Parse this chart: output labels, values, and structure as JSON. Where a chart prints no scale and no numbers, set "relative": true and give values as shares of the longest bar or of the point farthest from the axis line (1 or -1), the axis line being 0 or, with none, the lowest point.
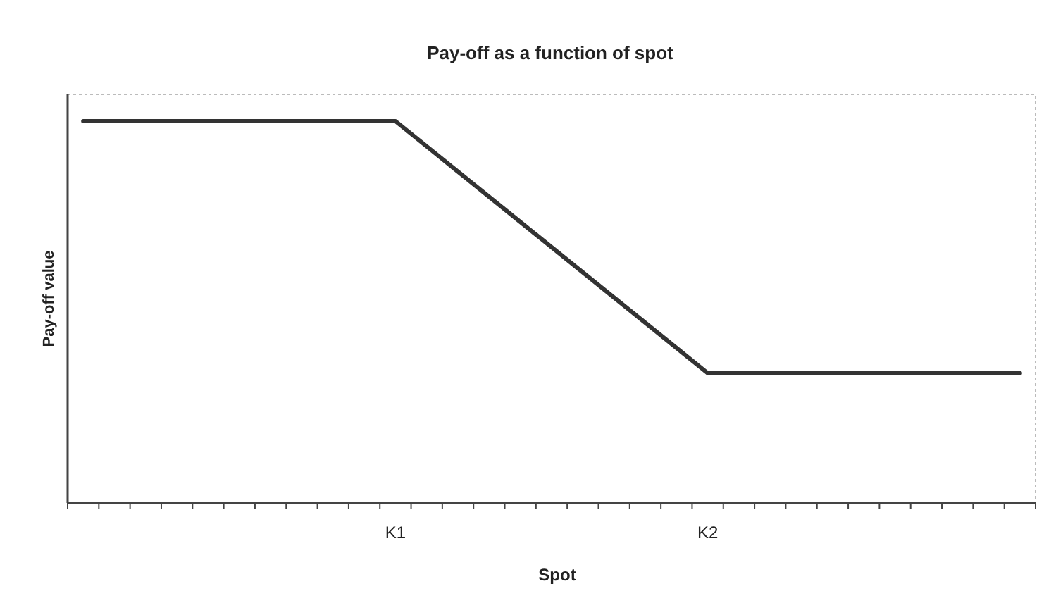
{
  "chart_data": {
    "type": "line",
    "title": "Pay-off as a function of spot",
    "xlabel": "Spot",
    "ylabel": "Pay-off value",
    "relative": true,
    "categories": [
      null,
      null,
      null,
      null,
      null,
      null,
      null,
      null,
      null,
      null,
      "K1",
      null,
      null,
      null,
      null,
      null,
      null,
      null,
      null,
      null,
      "K2",
      null,
      null,
      null,
      null,
      null,
      null,
      null,
      null,
      null,
      null
    ],
    "series": [
      {
        "color": "#333333",
        "values": [
          1,
          1,
          1,
          1,
          1,
          1,
          1,
          1,
          1,
          1,
          1,
          0.934,
          0.868,
          0.802,
          0.736,
          0.67,
          0.604,
          0.538,
          0.472,
          0.406,
          0.34,
          0.34,
          0.34,
          0.34,
          0.34,
          0.34,
          0.34,
          0.34,
          0.34,
          0.34,
          0.34
        ]
      }
    ],
    "marker": "none",
    "line_style": "solid"
  }
}
